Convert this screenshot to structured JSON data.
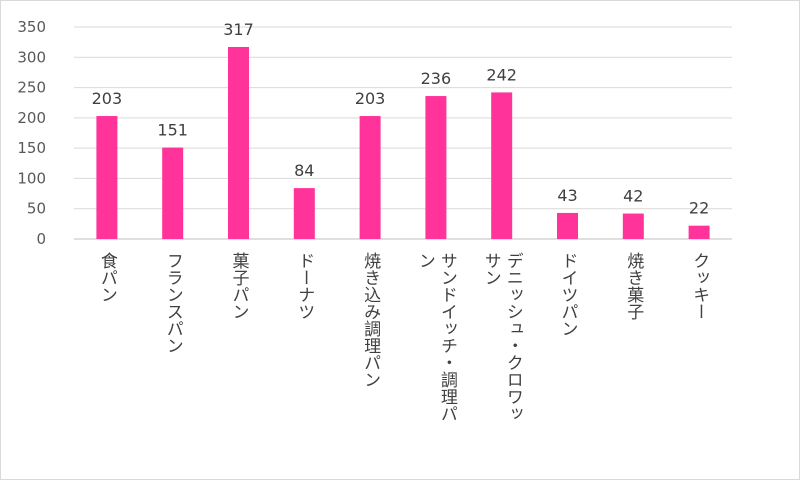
{
  "chart_data": {
    "type": "bar",
    "categories": [
      "食パン",
      "フランスパン",
      "菓子パン",
      "ドーナツ",
      "焼き込み調理パン",
      "サンドイッチ・調理パン",
      "デニッシュ・クロワッサン",
      "ドイツパン",
      "焼き菓子",
      "クッキー"
    ],
    "category_lines": [
      [
        "食パン"
      ],
      [
        "フランスパン"
      ],
      [
        "菓子パン"
      ],
      [
        "ドーナツ"
      ],
      [
        "焼き込み調理パン"
      ],
      [
        "サンドイッチ・調理パ",
        "ン"
      ],
      [
        "デニッシュ・クロワッ",
        "サン"
      ],
      [
        "ドイツパン"
      ],
      [
        "焼き菓子"
      ],
      [
        "クッキー"
      ]
    ],
    "values": [
      203,
      151,
      317,
      84,
      203,
      236,
      242,
      43,
      42,
      22
    ],
    "ylim": [
      0,
      350
    ],
    "yticks": [
      0,
      50,
      100,
      150,
      200,
      250,
      300,
      350
    ],
    "grid": true,
    "legend": "none",
    "bar_color": "#ff3399",
    "grid_color": "#d9d9d9",
    "title": "",
    "xlabel": "",
    "ylabel": ""
  }
}
